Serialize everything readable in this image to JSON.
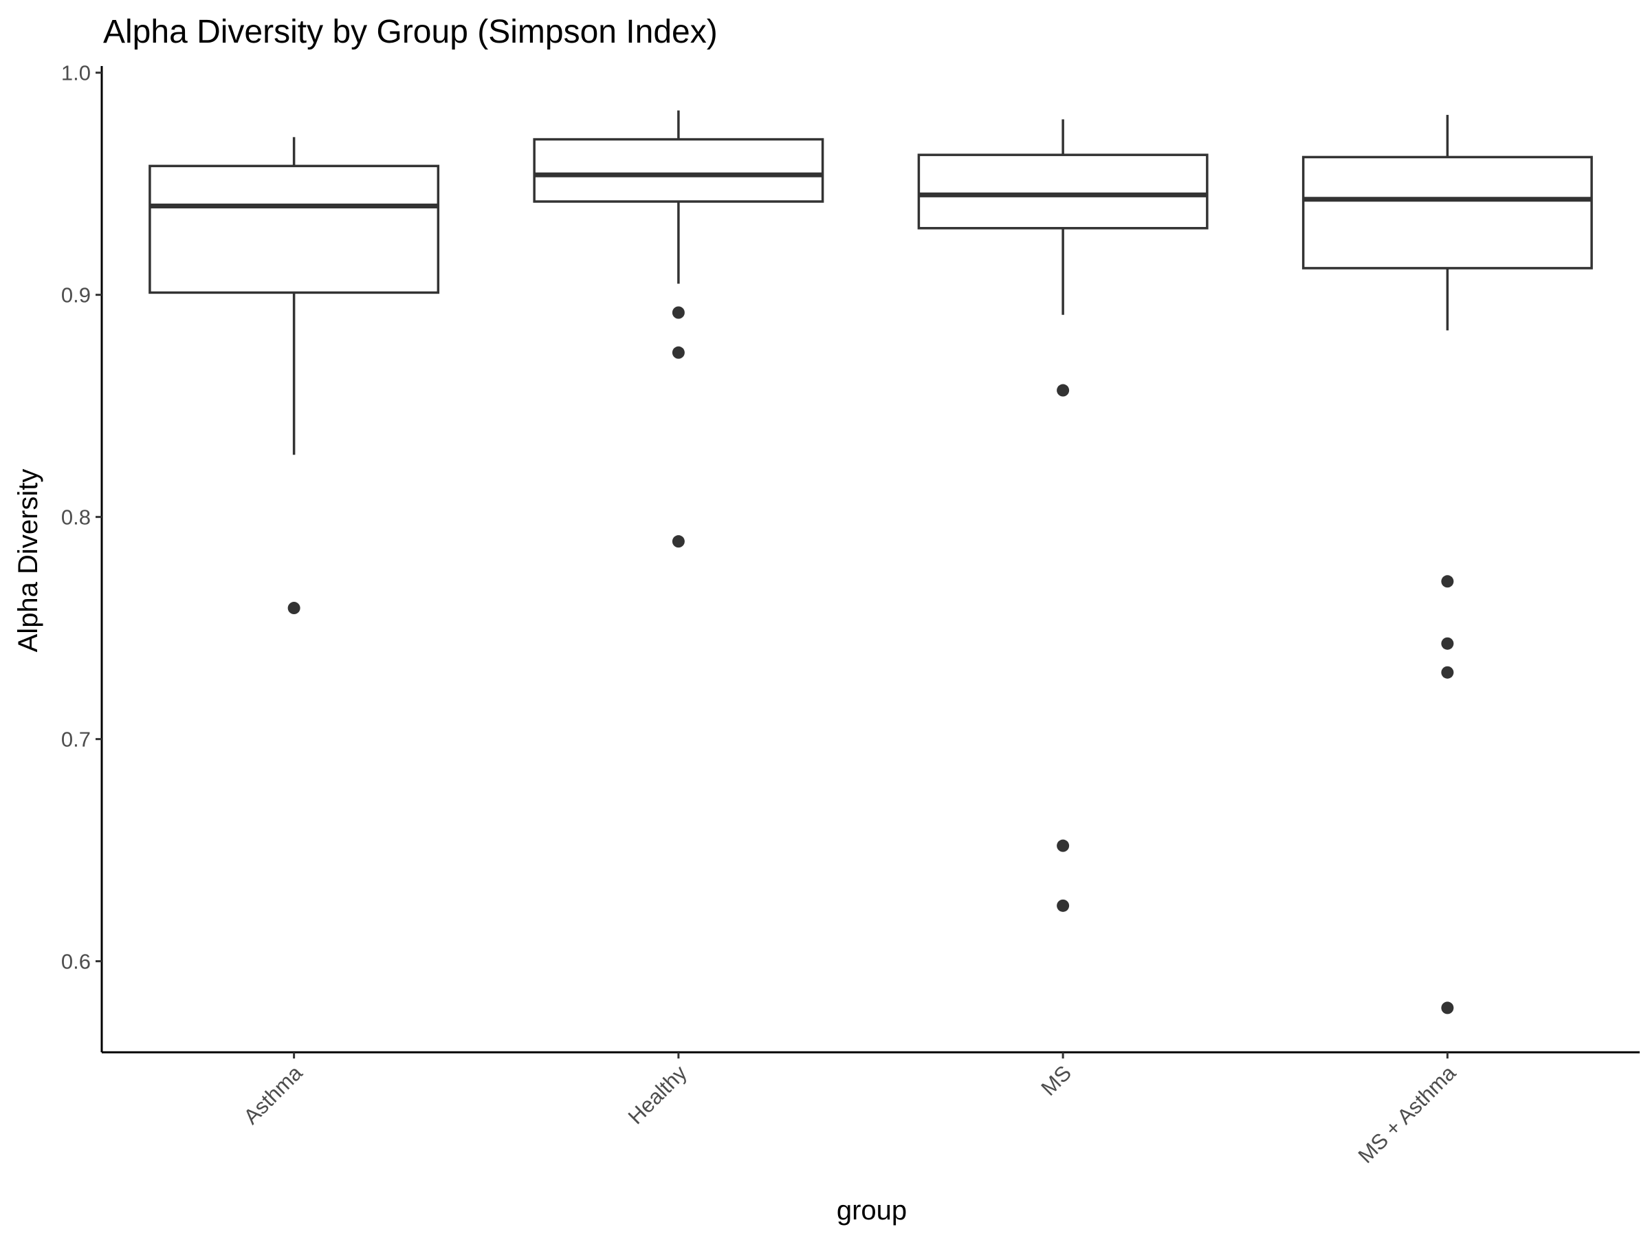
{
  "chart_data": {
    "type": "box",
    "title": "Alpha Diversity by Group (Simpson Index)",
    "xlabel": "group",
    "ylabel": "Alpha Diversity",
    "ylim": [
      0.559,
      1.003
    ],
    "yticks": [
      0.6,
      0.7,
      0.8,
      0.9,
      1.0
    ],
    "ytick_labels": [
      "0.6",
      "0.7",
      "0.8",
      "0.9",
      "1.0"
    ],
    "categories": [
      "Asthma",
      "Healthy",
      "MS",
      "MS + Asthma"
    ],
    "grid": false,
    "legend": "none",
    "colors": {
      "box_stroke": "#333333",
      "box_fill": "#ffffff",
      "outlier": "#333333",
      "axis": "#000000"
    },
    "boxes": [
      {
        "name": "Asthma",
        "whisker_low": 0.828,
        "q1": 0.901,
        "median": 0.94,
        "q3": 0.958,
        "whisker_high": 0.971,
        "outliers": [
          0.759
        ]
      },
      {
        "name": "Healthy",
        "whisker_low": 0.905,
        "q1": 0.942,
        "median": 0.954,
        "q3": 0.97,
        "whisker_high": 0.983,
        "outliers": [
          0.892,
          0.874,
          0.789
        ]
      },
      {
        "name": "MS",
        "whisker_low": 0.891,
        "q1": 0.93,
        "median": 0.945,
        "q3": 0.963,
        "whisker_high": 0.979,
        "outliers": [
          0.857,
          0.652,
          0.625
        ]
      },
      {
        "name": "MS + Asthma",
        "whisker_low": 0.884,
        "q1": 0.912,
        "median": 0.943,
        "q3": 0.962,
        "whisker_high": 0.981,
        "outliers": [
          0.771,
          0.743,
          0.73,
          0.579
        ]
      }
    ]
  }
}
